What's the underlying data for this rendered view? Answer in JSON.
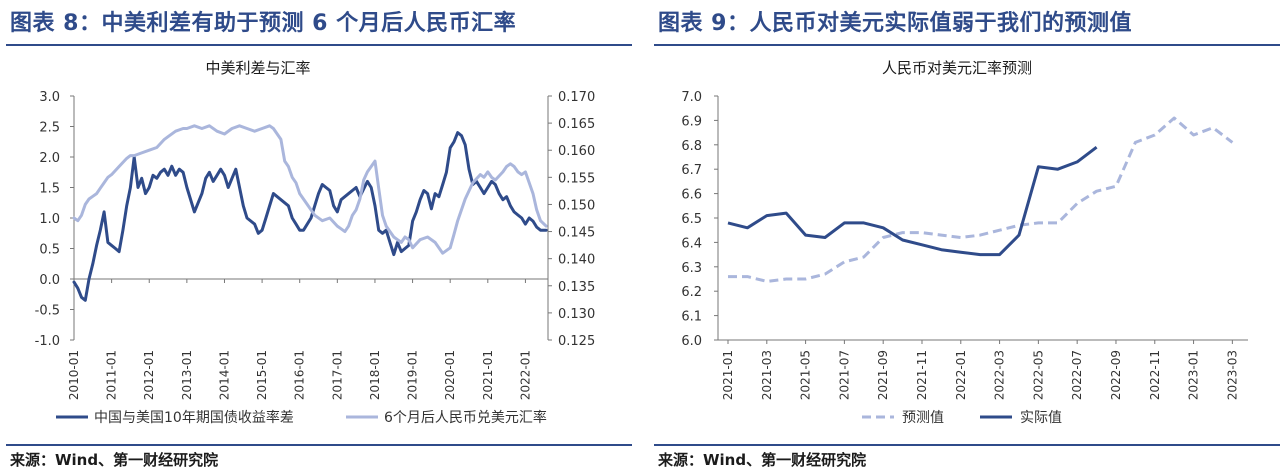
{
  "left": {
    "figure_title": "图表 8：中美利差有助于预测 6 个月后人民币汇率",
    "source": "来源：Wind、第一财经研究院",
    "colors": {
      "spread": "#2f4b8a",
      "fx": "#aab6dc",
      "axis": "#777777",
      "text": "#333333"
    },
    "chart_data": {
      "type": "line",
      "title": "中美利差与汇率",
      "x_ticks": [
        "2010-01",
        "2011-01",
        "2012-01",
        "2013-01",
        "2014-01",
        "2015-01",
        "2016-01",
        "2017-01",
        "2018-01",
        "2019-01",
        "2020-01",
        "2021-01",
        "2022-01"
      ],
      "x_range": [
        2010.0,
        2022.6
      ],
      "y_left": {
        "ticks": [
          "3.0",
          "2.5",
          "2.0",
          "1.5",
          "1.0",
          "0.5",
          "0.0",
          "-0.5",
          "-1.0"
        ],
        "range": [
          -1.0,
          3.0
        ]
      },
      "y_right": {
        "ticks": [
          "0.170",
          "0.165",
          "0.160",
          "0.155",
          "0.150",
          "0.145",
          "0.140",
          "0.135",
          "0.130",
          "0.125"
        ],
        "range": [
          0.125,
          0.17
        ]
      },
      "legend_position": "bottom",
      "series": [
        {
          "name": "中国与美国10年期国债收益率差",
          "axis": "left",
          "x": [
            2010.0,
            2010.1,
            2010.2,
            2010.3,
            2010.4,
            2010.5,
            2010.6,
            2010.7,
            2010.8,
            2010.9,
            2011.0,
            2011.1,
            2011.2,
            2011.3,
            2011.4,
            2011.5,
            2011.6,
            2011.7,
            2011.8,
            2011.9,
            2012.0,
            2012.1,
            2012.2,
            2012.3,
            2012.4,
            2012.5,
            2012.6,
            2012.7,
            2012.8,
            2012.9,
            2013.0,
            2013.2,
            2013.4,
            2013.5,
            2013.6,
            2013.7,
            2013.8,
            2013.9,
            2014.0,
            2014.1,
            2014.2,
            2014.3,
            2014.5,
            2014.6,
            2014.8,
            2014.9,
            2015.0,
            2015.1,
            2015.2,
            2015.3,
            2015.5,
            2015.7,
            2015.8,
            2015.9,
            2016.0,
            2016.1,
            2016.3,
            2016.5,
            2016.6,
            2016.7,
            2016.8,
            2016.9,
            2017.0,
            2017.1,
            2017.3,
            2017.5,
            2017.6,
            2017.8,
            2017.9,
            2018.0,
            2018.1,
            2018.2,
            2018.3,
            2018.4,
            2018.5,
            2018.6,
            2018.7,
            2018.8,
            2018.9,
            2019.0,
            2019.1,
            2019.2,
            2019.3,
            2019.4,
            2019.5,
            2019.6,
            2019.7,
            2019.8,
            2019.9,
            2020.0,
            2020.1,
            2020.2,
            2020.3,
            2020.4,
            2020.5,
            2020.6,
            2020.7,
            2020.8,
            2020.9,
            2021.0,
            2021.1,
            2021.2,
            2021.3,
            2021.4,
            2021.5,
            2021.6,
            2021.7,
            2021.8,
            2021.9,
            2022.0,
            2022.1,
            2022.2,
            2022.3,
            2022.4,
            2022.5,
            2022.55
          ],
          "values": [
            -0.05,
            -0.15,
            -0.3,
            -0.35,
            0.0,
            0.25,
            0.55,
            0.8,
            1.1,
            0.6,
            0.55,
            0.5,
            0.45,
            0.8,
            1.2,
            1.5,
            2.0,
            1.5,
            1.65,
            1.4,
            1.5,
            1.7,
            1.65,
            1.75,
            1.8,
            1.7,
            1.85,
            1.7,
            1.8,
            1.75,
            1.5,
            1.1,
            1.4,
            1.65,
            1.75,
            1.6,
            1.7,
            1.8,
            1.7,
            1.5,
            1.65,
            1.8,
            1.2,
            1.0,
            0.9,
            0.75,
            0.8,
            1.0,
            1.2,
            1.4,
            1.3,
            1.2,
            1.0,
            0.9,
            0.8,
            0.8,
            1.0,
            1.4,
            1.55,
            1.5,
            1.45,
            1.2,
            1.1,
            1.3,
            1.4,
            1.5,
            1.35,
            1.6,
            1.5,
            1.2,
            0.8,
            0.75,
            0.8,
            0.6,
            0.4,
            0.6,
            0.45,
            0.5,
            0.55,
            0.95,
            1.1,
            1.3,
            1.45,
            1.4,
            1.15,
            1.4,
            1.35,
            1.55,
            1.75,
            2.15,
            2.25,
            2.4,
            2.35,
            2.2,
            1.8,
            1.55,
            1.6,
            1.5,
            1.4,
            1.5,
            1.6,
            1.55,
            1.4,
            1.3,
            1.35,
            1.2,
            1.1,
            1.05,
            1.0,
            0.9,
            1.0,
            0.95,
            0.85,
            0.8,
            0.8,
            0.8
          ]
        },
        {
          "name": "6个月后人民币兑美元汇率",
          "axis": "right",
          "x": [
            2010.0,
            2010.1,
            2010.2,
            2010.3,
            2010.4,
            2010.5,
            2010.6,
            2010.7,
            2010.8,
            2010.9,
            2011.0,
            2011.2,
            2011.4,
            2011.5,
            2011.6,
            2011.8,
            2012.0,
            2012.2,
            2012.4,
            2012.5,
            2012.7,
            2012.9,
            2013.0,
            2013.2,
            2013.4,
            2013.6,
            2013.8,
            2014.0,
            2014.2,
            2014.4,
            2014.6,
            2014.8,
            2015.0,
            2015.2,
            2015.3,
            2015.5,
            2015.6,
            2015.7,
            2015.8,
            2015.9,
            2016.0,
            2016.2,
            2016.4,
            2016.6,
            2016.8,
            2017.0,
            2017.1,
            2017.2,
            2017.3,
            2017.4,
            2017.5,
            2017.6,
            2017.7,
            2017.8,
            2018.0,
            2018.1,
            2018.2,
            2018.3,
            2018.4,
            2018.5,
            2018.6,
            2018.7,
            2018.8,
            2018.9,
            2019.0,
            2019.2,
            2019.4,
            2019.6,
            2019.8,
            2020.0,
            2020.1,
            2020.2,
            2020.4,
            2020.6,
            2020.8,
            2020.9,
            2021.0,
            2021.1,
            2021.2,
            2021.4,
            2021.5,
            2021.6,
            2021.7,
            2021.8,
            2021.9,
            2022.0,
            2022.1,
            2022.2,
            2022.3,
            2022.4,
            2022.55
          ],
          "values": [
            0.1475,
            0.147,
            0.148,
            0.15,
            0.151,
            0.1515,
            0.152,
            0.153,
            0.154,
            0.155,
            0.1555,
            0.157,
            0.1585,
            0.159,
            0.159,
            0.1595,
            0.16,
            0.1605,
            0.162,
            0.1625,
            0.1635,
            0.164,
            0.164,
            0.1645,
            0.164,
            0.1645,
            0.1635,
            0.163,
            0.164,
            0.1645,
            0.164,
            0.1635,
            0.164,
            0.1645,
            0.164,
            0.162,
            0.158,
            0.157,
            0.155,
            0.154,
            0.152,
            0.15,
            0.148,
            0.147,
            0.1475,
            0.146,
            0.1455,
            0.145,
            0.146,
            0.148,
            0.149,
            0.151,
            0.1545,
            0.156,
            0.158,
            0.153,
            0.148,
            0.146,
            0.145,
            0.144,
            0.1435,
            0.143,
            0.144,
            0.1435,
            0.142,
            0.1435,
            0.144,
            0.143,
            0.141,
            0.142,
            0.1445,
            0.147,
            0.151,
            0.154,
            0.1555,
            0.155,
            0.156,
            0.155,
            0.1545,
            0.156,
            0.157,
            0.1575,
            0.157,
            0.156,
            0.1555,
            0.156,
            0.154,
            0.152,
            0.149,
            0.147,
            0.146
          ]
        }
      ]
    }
  },
  "right": {
    "figure_title": "图表 9：人民币对美元实际值弱于我们的预测值",
    "source": "来源：Wind、第一财经研究院",
    "colors": {
      "forecast": "#aab6dc",
      "actual": "#2f4b8a",
      "axis": "#777777",
      "text": "#333333"
    },
    "chart_data": {
      "type": "line",
      "title": "人民币对美元汇率预测",
      "x_ticks": [
        "2021-01",
        "2021-03",
        "2021-05",
        "2021-07",
        "2021-09",
        "2021-11",
        "2022-01",
        "2022-03",
        "2022-05",
        "2022-07",
        "2022-09",
        "2022-11",
        "2023-01",
        "2023-03"
      ],
      "y": {
        "ticks": [
          "7.0",
          "6.9",
          "6.8",
          "6.7",
          "6.6",
          "6.5",
          "6.4",
          "6.3",
          "6.2",
          "6.1",
          "6.0"
        ],
        "range": [
          6.0,
          7.0
        ]
      },
      "legend_position": "bottom",
      "series": [
        {
          "name": "预测值",
          "style": "dashed",
          "x": [
            0,
            1,
            2,
            3,
            4,
            5,
            6,
            7,
            8,
            9,
            10,
            11,
            12,
            13,
            14,
            15,
            16,
            17,
            18,
            19,
            20,
            21,
            22,
            23,
            24,
            25,
            26
          ],
          "values": [
            6.26,
            6.26,
            6.24,
            6.25,
            6.25,
            6.27,
            6.32,
            6.34,
            6.42,
            6.44,
            6.44,
            6.43,
            6.42,
            6.43,
            6.45,
            6.47,
            6.48,
            6.48,
            6.56,
            6.61,
            6.63,
            6.81,
            6.84,
            6.91,
            6.84,
            6.87,
            6.81
          ]
        },
        {
          "name": "实际值",
          "style": "solid",
          "x": [
            0,
            1,
            2,
            3,
            4,
            5,
            6,
            7,
            8,
            9,
            10,
            11,
            12,
            13,
            14,
            15,
            16,
            17,
            18,
            19
          ],
          "values": [
            6.48,
            6.46,
            6.51,
            6.52,
            6.43,
            6.42,
            6.48,
            6.48,
            6.46,
            6.41,
            6.39,
            6.37,
            6.36,
            6.35,
            6.35,
            6.43,
            6.71,
            6.7,
            6.73,
            6.79
          ]
        }
      ]
    }
  }
}
